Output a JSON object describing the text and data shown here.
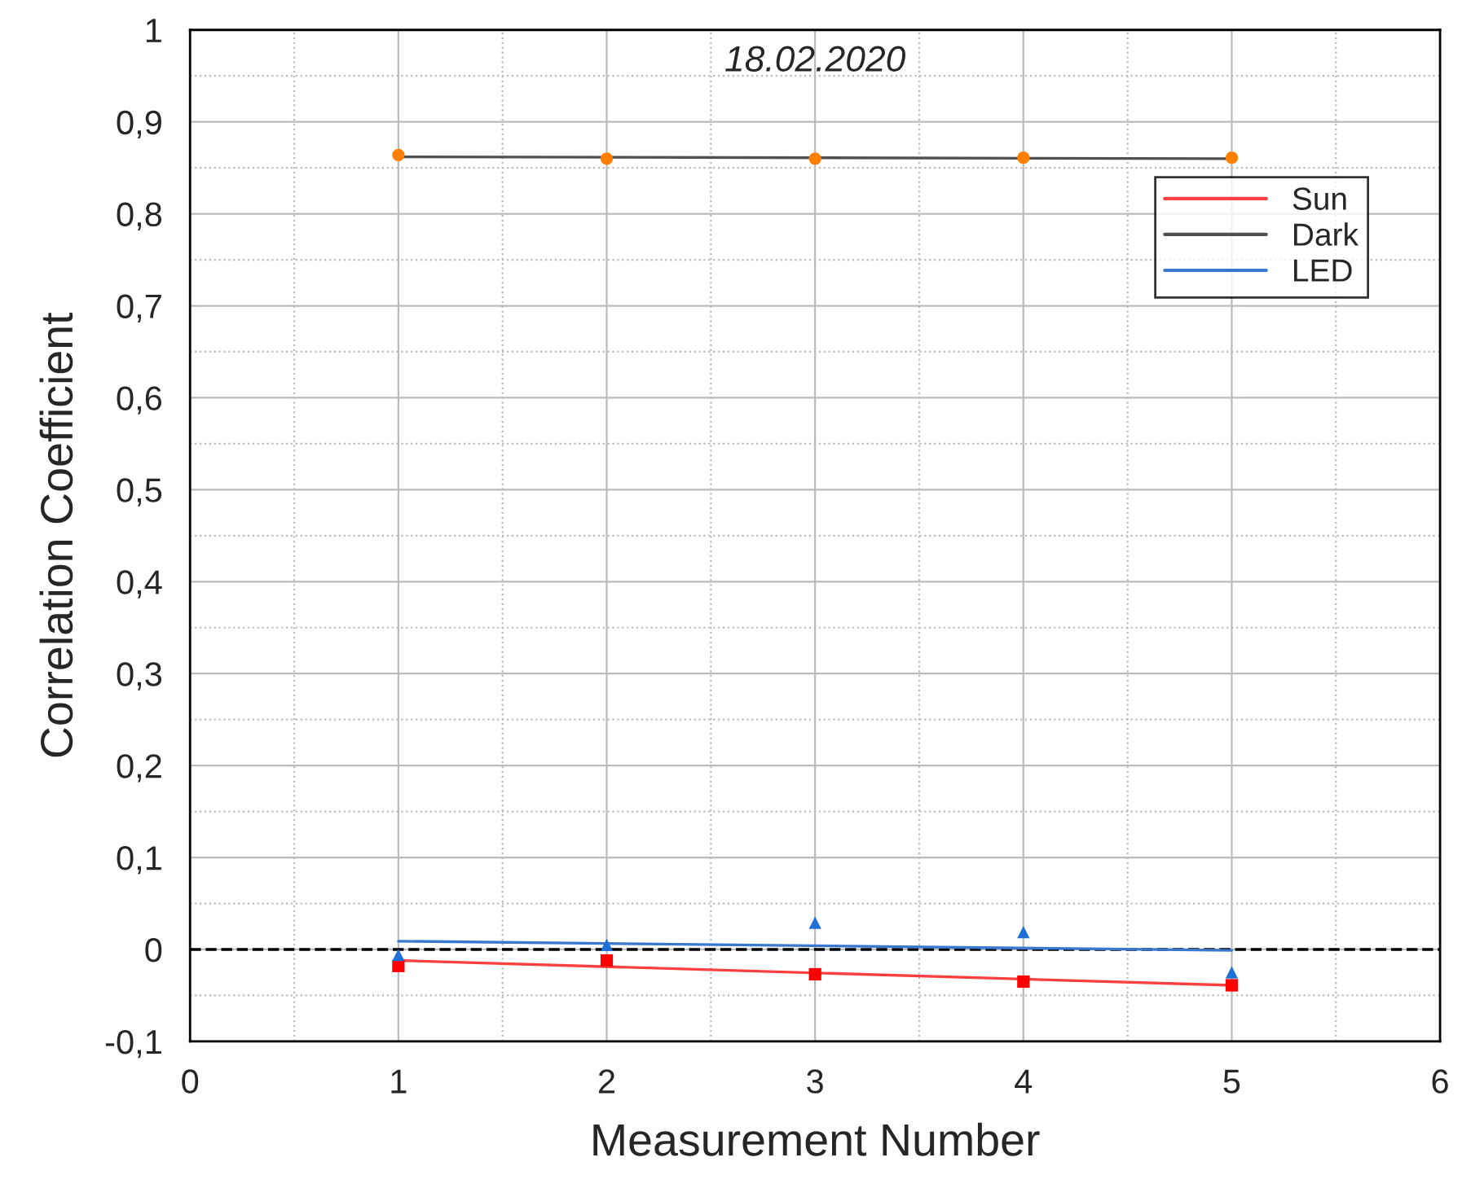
{
  "chart_data": {
    "type": "scatter",
    "title": "18.02.2020",
    "xlabel": "Measurement Number",
    "ylabel": "Correlation Coefficient",
    "series": [
      {
        "marker": "square",
        "color": "#ff0000",
        "x": [
          1,
          2,
          3,
          4,
          5
        ],
        "values": [
          -0.018,
          -0.012,
          -0.027,
          -0.035,
          -0.039
        ]
      },
      {
        "marker": "circle",
        "color": "#ff8000",
        "x": [
          1,
          2,
          3,
          4,
          5
        ],
        "values": [
          0.864,
          0.86,
          0.86,
          0.861,
          0.861
        ]
      },
      {
        "marker": "triangle",
        "color": "#1f6fd6",
        "x": [
          1,
          2,
          3,
          4,
          5
        ],
        "values": [
          -0.006,
          0.005,
          0.029,
          0.019,
          -0.025
        ]
      },
      {
        "type": "line",
        "name": "Sun",
        "color": "#ff4040",
        "x": [
          1,
          5
        ],
        "values": [
          -0.012,
          -0.039
        ]
      },
      {
        "type": "line",
        "name": "Dark",
        "color": "#505050",
        "x": [
          1,
          5
        ],
        "values": [
          0.862,
          0.86
        ]
      },
      {
        "type": "line",
        "name": "LED",
        "color": "#3a78d0",
        "x": [
          1,
          5
        ],
        "values": [
          0.009,
          -0.001
        ]
      }
    ],
    "ref_lines": [
      {
        "axis": "y",
        "value": 0,
        "color": "#000000",
        "line_style": "dashed"
      }
    ],
    "xlim": [
      0,
      6
    ],
    "xticks": [
      0,
      1,
      2,
      3,
      4,
      5,
      6
    ],
    "ylim": [
      -0.1,
      1
    ],
    "yticks": [
      {
        "value": -0.1,
        "label": "-0,1"
      },
      0,
      {
        "value": 0.1,
        "label": "0,1"
      },
      {
        "value": 0.2,
        "label": "0,2"
      },
      {
        "value": 0.3,
        "label": "0,3"
      },
      {
        "value": 0.4,
        "label": "0,4"
      },
      {
        "value": 0.5,
        "label": "0,5"
      },
      {
        "value": 0.6,
        "label": "0,6"
      },
      {
        "value": 0.7,
        "label": "0,7"
      },
      {
        "value": 0.8,
        "label": "0,8"
      },
      {
        "value": 0.9,
        "label": "0,9"
      },
      1
    ],
    "grid": true,
    "legend": "top right"
  }
}
